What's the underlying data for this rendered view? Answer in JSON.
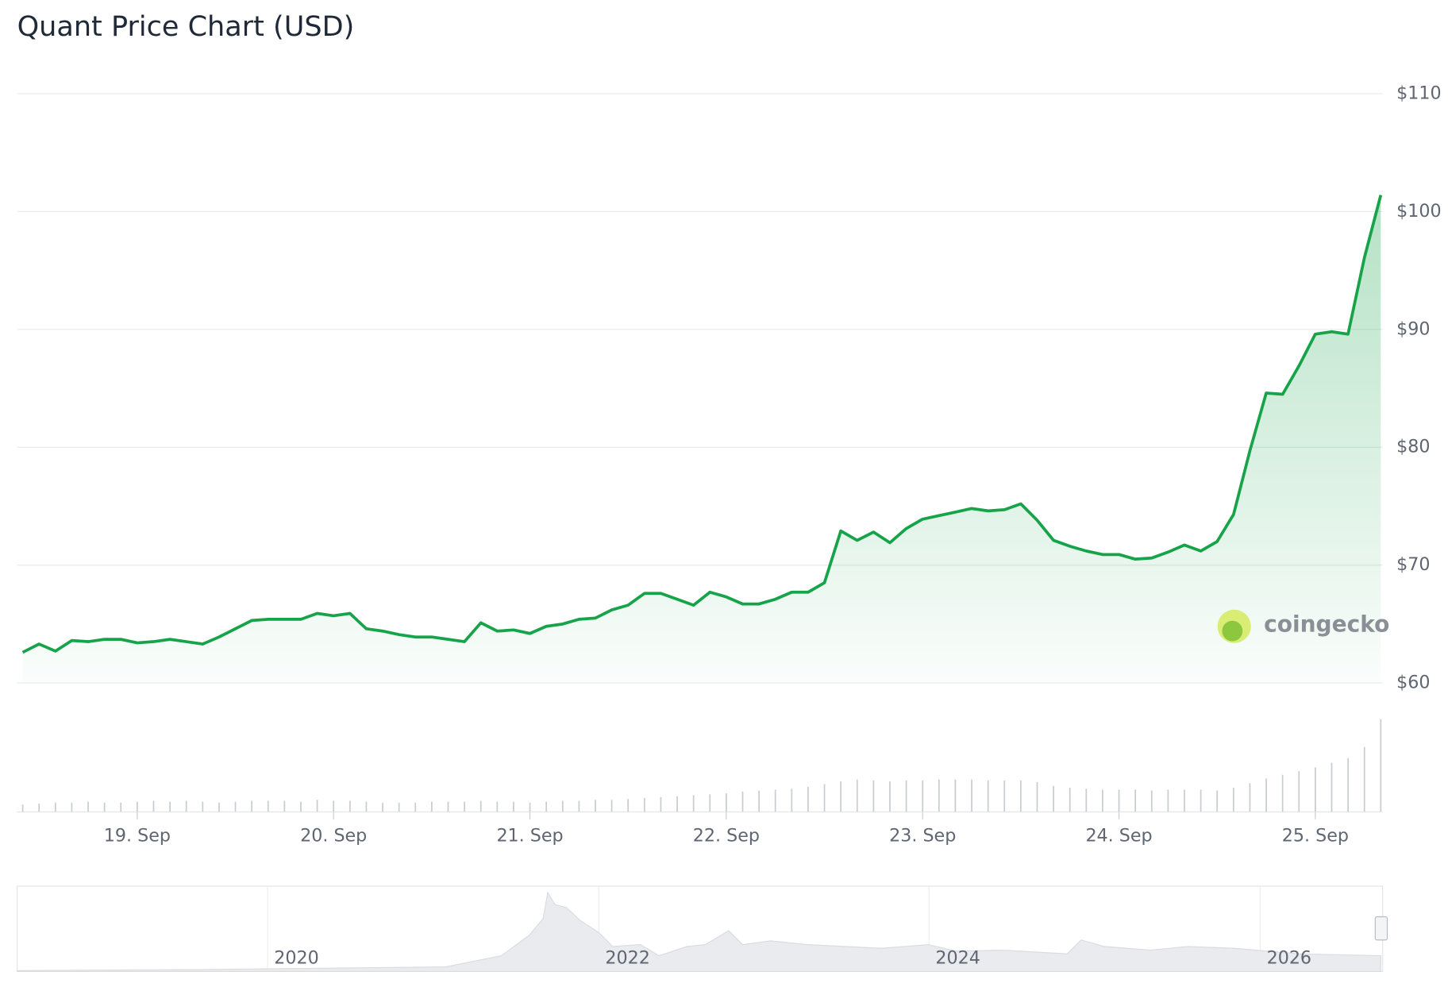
{
  "chart_data": {
    "type": "line",
    "title": "Quant Price Chart (USD)",
    "categories": [
      null,
      null,
      null,
      null,
      null,
      null,
      null,
      "19. Sep",
      null,
      null,
      null,
      null,
      null,
      null,
      null,
      null,
      null,
      null,
      null,
      "20. Sep",
      null,
      null,
      null,
      null,
      null,
      null,
      null,
      null,
      null,
      null,
      null,
      "21. Sep",
      null,
      null,
      null,
      null,
      null,
      null,
      null,
      null,
      null,
      null,
      null,
      "22. Sep",
      null,
      null,
      null,
      null,
      null,
      null,
      null,
      null,
      null,
      null,
      null,
      "23. Sep",
      null,
      null,
      null,
      null,
      null,
      null,
      null,
      null,
      null,
      null,
      null,
      "24. Sep",
      null,
      null,
      null,
      null,
      null,
      null,
      null,
      null,
      null,
      null,
      null,
      "25. Sep",
      null,
      null,
      null,
      null
    ],
    "series": [
      {
        "name": "Price",
        "color": "#16a34a",
        "values": [
          62.6,
          63.3,
          62.7,
          63.6,
          63.5,
          63.7,
          63.7,
          63.4,
          63.5,
          63.7,
          63.5,
          63.3,
          63.9,
          64.6,
          65.3,
          65.4,
          65.4,
          65.4,
          65.9,
          65.7,
          65.9,
          64.6,
          64.4,
          64.1,
          63.9,
          63.9,
          63.7,
          63.5,
          65.1,
          64.4,
          64.5,
          64.2,
          64.8,
          65.0,
          65.4,
          65.5,
          66.2,
          66.6,
          67.6,
          67.6,
          67.1,
          66.6,
          67.7,
          67.3,
          66.7,
          66.7,
          67.1,
          67.7,
          67.7,
          68.5,
          72.9,
          72.1,
          72.8,
          71.9,
          73.1,
          73.9,
          74.2,
          74.5,
          74.8,
          74.6,
          74.7,
          75.2,
          73.8,
          72.1,
          71.6,
          71.2,
          70.9,
          70.9,
          70.5,
          70.6,
          71.1,
          71.7,
          71.2,
          72.0,
          74.3,
          79.7,
          84.6,
          84.5,
          86.9,
          89.6,
          89.8,
          89.6,
          96.1,
          101.4
        ]
      },
      {
        "name": "Volume",
        "color": "#c9ccd1",
        "values": [
          8,
          9,
          10,
          10,
          11,
          10,
          10,
          11,
          12,
          11,
          12,
          11,
          10,
          11,
          12,
          12,
          12,
          11,
          13,
          12,
          12,
          11,
          10,
          10,
          10,
          11,
          11,
          11,
          12,
          11,
          11,
          10,
          11,
          12,
          12,
          13,
          13,
          14,
          15,
          16,
          17,
          18,
          19,
          20,
          22,
          23,
          24,
          25,
          27,
          30,
          33,
          35,
          34,
          33,
          34,
          34,
          35,
          35,
          35,
          34,
          34,
          34,
          32,
          28,
          26,
          25,
          24,
          24,
          24,
          23,
          24,
          24,
          24,
          23,
          26,
          31,
          36,
          40,
          44,
          48,
          53,
          58,
          70,
          100
        ]
      }
    ],
    "ylim": [
      60,
      110
    ],
    "yticks": [
      {
        "value": 60,
        "label": "$60"
      },
      {
        "value": 70,
        "label": "$70"
      },
      {
        "value": 80,
        "label": "$80"
      },
      {
        "value": 90,
        "label": "$90"
      },
      {
        "value": 100,
        "label": "$100"
      },
      {
        "value": 110,
        "label": "$110"
      }
    ],
    "grid": true,
    "watermark": "coingecko",
    "navigator_labels": [
      "2020",
      "2022",
      "2024",
      "2026"
    ]
  }
}
